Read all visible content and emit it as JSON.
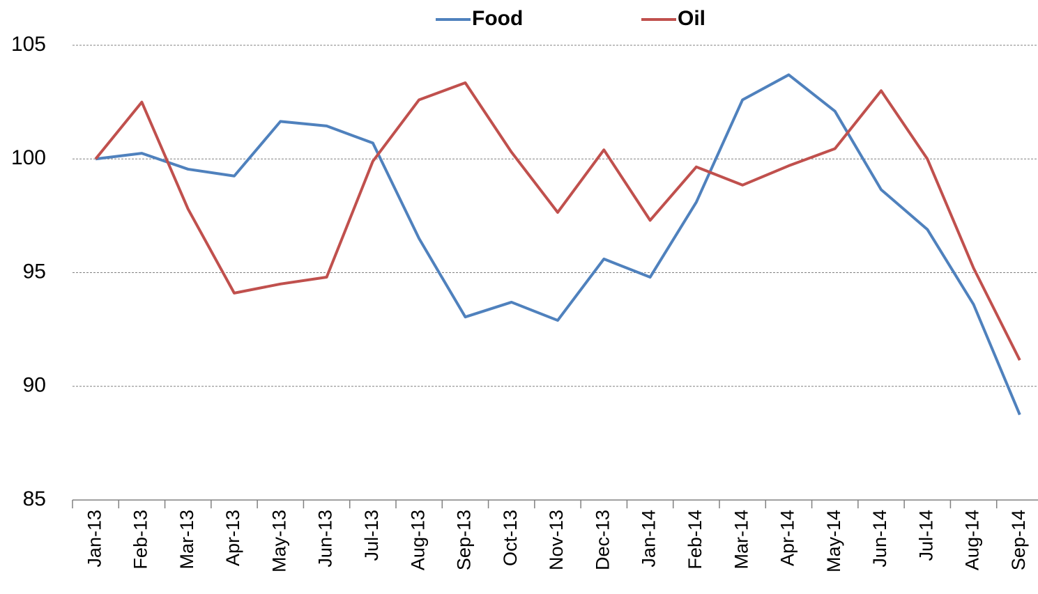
{
  "chart_data": {
    "type": "line",
    "categories": [
      "Jan-13",
      "Feb-13",
      "Mar-13",
      "Apr-13",
      "May-13",
      "Jun-13",
      "Jul-13",
      "Aug-13",
      "Sep-13",
      "Oct-13",
      "Nov-13",
      "Dec-13",
      "Jan-14",
      "Feb-14",
      "Mar-14",
      "Apr-14",
      "May-14",
      "Jun-14",
      "Jul-14",
      "Aug-14",
      "Sep-14"
    ],
    "series": [
      {
        "name": "Food",
        "color": "#4f81bd",
        "values": [
          100,
          100.25,
          99.55,
          99.25,
          101.65,
          101.45,
          100.7,
          96.5,
          93.05,
          93.7,
          92.9,
          95.6,
          94.8,
          98.1,
          102.6,
          103.7,
          102.1,
          98.65,
          96.9,
          93.6,
          88.75
        ]
      },
      {
        "name": "Oil",
        "color": "#c0504d",
        "values": [
          100,
          102.5,
          97.8,
          94.1,
          94.5,
          94.8,
          99.9,
          102.6,
          103.35,
          100.3,
          97.65,
          100.4,
          97.3,
          99.65,
          98.85,
          99.7,
          100.45,
          103,
          100,
          95.2,
          91.15
        ]
      }
    ],
    "ylim": [
      85,
      105
    ],
    "yticks": [
      85,
      90,
      95,
      100,
      105
    ],
    "grid": true,
    "legend": "top"
  }
}
